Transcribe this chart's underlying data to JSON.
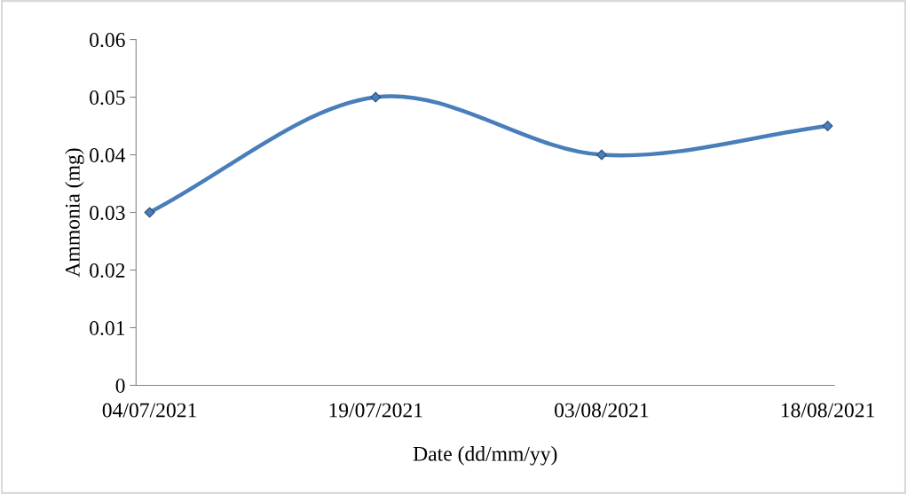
{
  "chart_data": {
    "type": "line",
    "xlabel": "Date (dd/mm/yy)",
    "ylabel": "Ammonia (mg)",
    "categories": [
      "04/07/2021",
      "19/07/2021",
      "03/08/2021",
      "18/08/2021"
    ],
    "series": [
      {
        "color": "#4a7ebb",
        "values": [
          0.03,
          0.05,
          0.04,
          0.045
        ]
      }
    ],
    "ylim": [
      0,
      0.06
    ],
    "yticks": [
      0,
      0.01,
      0.02,
      0.03,
      0.04,
      0.05,
      0.06
    ],
    "grid": false,
    "marker": "diamond",
    "line_style": "solid"
  }
}
